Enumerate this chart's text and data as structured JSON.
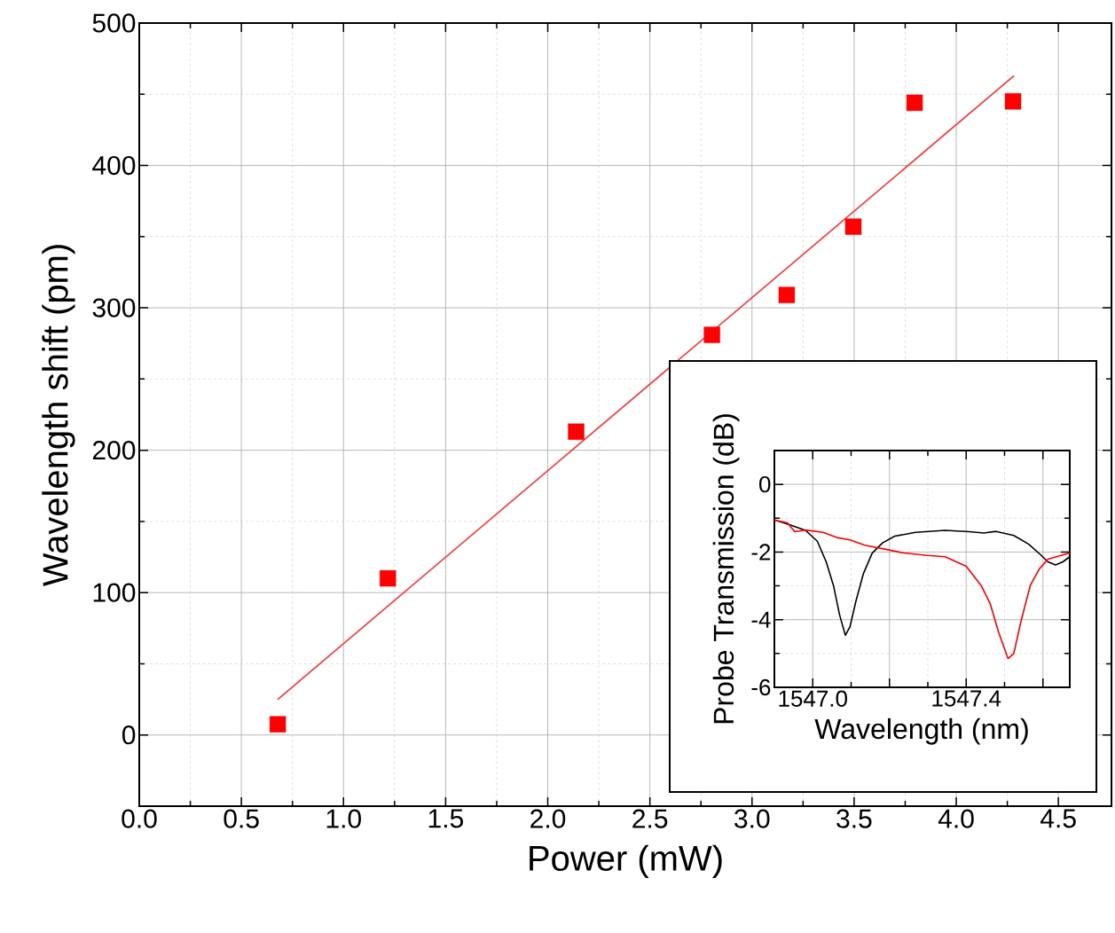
{
  "chart_data": [
    {
      "type": "scatter",
      "xlabel": "Power (mW)",
      "ylabel": "Wavelength shift (pm)",
      "xlim": [
        0,
        4.76
      ],
      "ylim": [
        -50,
        500
      ],
      "xticks": [
        {
          "value": 0,
          "label": "0.0"
        },
        0.5,
        {
          "value": 1,
          "label": "1.0"
        },
        1.5,
        {
          "value": 2,
          "label": "2.0"
        },
        2.5,
        {
          "value": 3,
          "label": "3.0"
        },
        3.5,
        {
          "value": 4,
          "label": "4.0"
        },
        4.5
      ],
      "yticks": [
        0,
        100,
        200,
        300,
        400,
        500
      ],
      "grid": true,
      "series": [
        {
          "type": "scatter",
          "marker": "square",
          "color": "#ff0000",
          "x": [
            0.678,
            1.217,
            2.139,
            2.804,
            3.17,
            3.496,
            3.796,
            4.278
          ],
          "values": [
            7.5,
            110,
            213,
            281,
            309,
            357,
            444,
            445
          ]
        },
        {
          "type": "line",
          "marker": "none",
          "color": "#ff3333",
          "x": [
            0.678,
            4.283
          ],
          "values": [
            25,
            463
          ]
        }
      ]
    },
    {
      "type": "line",
      "xlabel": "Wavelength (nm)",
      "ylabel": "Probe Transmission (dB)",
      "xlim": [
        1546.9,
        1547.67
      ],
      "ylim": [
        -6,
        1
      ],
      "xticks": [
        {
          "value": 1547.0,
          "label": "1547.0"
        },
        {
          "value": 1547.2,
          "label": null
        },
        1547.4,
        {
          "value": 1547.6,
          "label": null
        }
      ],
      "yticks": [
        -6,
        -4,
        -2,
        0
      ],
      "grid": true,
      "marker": "none",
      "series": [
        {
          "color": "#000000",
          "x": [
            1546.9,
            1546.942,
            1546.981,
            1547.012,
            1547.035,
            1547.054,
            1547.07,
            1547.085,
            1547.097,
            1547.113,
            1547.132,
            1547.155,
            1547.182,
            1547.214,
            1547.268,
            1547.345,
            1547.408,
            1547.446,
            1547.478,
            1547.524,
            1547.563,
            1547.594,
            1547.613,
            1547.633,
            1547.652,
            1547.67
          ],
          "values": [
            -1.05,
            -1.2,
            -1.36,
            -1.68,
            -2.29,
            -2.99,
            -3.86,
            -4.46,
            -4.21,
            -3.43,
            -2.64,
            -2.03,
            -1.73,
            -1.53,
            -1.42,
            -1.36,
            -1.4,
            -1.44,
            -1.39,
            -1.51,
            -1.77,
            -2.08,
            -2.29,
            -2.38,
            -2.29,
            -2.14
          ]
        },
        {
          "color": "#ff0000",
          "x": [
            1546.9,
            1546.934,
            1546.953,
            1546.981,
            1547.027,
            1547.066,
            1547.097,
            1547.136,
            1547.19,
            1547.237,
            1547.299,
            1547.345,
            1547.4,
            1547.439,
            1547.462,
            1547.485,
            1547.509,
            1547.524,
            1547.543,
            1547.567,
            1547.59,
            1547.613,
            1547.641,
            1547.67
          ],
          "values": [
            -1.05,
            -1.14,
            -1.4,
            -1.35,
            -1.42,
            -1.58,
            -1.64,
            -1.8,
            -1.92,
            -2.03,
            -2.1,
            -2.14,
            -2.42,
            -2.99,
            -3.51,
            -4.39,
            -5.15,
            -5.0,
            -4.04,
            -2.99,
            -2.51,
            -2.21,
            -2.12,
            -2.03
          ]
        }
      ]
    }
  ]
}
